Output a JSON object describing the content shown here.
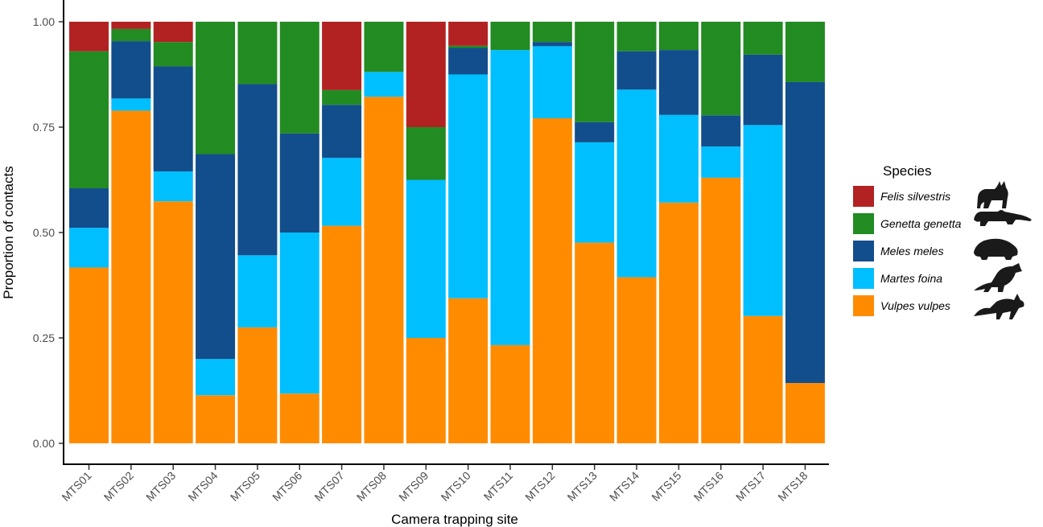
{
  "chart_data": {
    "type": "bar",
    "stacked": true,
    "xlabel": "Camera trapping site",
    "ylabel": "Proportion of contacts",
    "ylim": [
      0,
      1
    ],
    "yticks": [
      "0.00",
      "0.25",
      "0.50",
      "0.75",
      "1.00"
    ],
    "grid": false,
    "legend_title": "Species",
    "legend_position": "right",
    "categories": [
      "MTS01",
      "MTS02",
      "MTS03",
      "MTS04",
      "MTS05",
      "MTS06",
      "MTS07",
      "MTS08",
      "MTS09",
      "MTS10",
      "MTS11",
      "MTS12",
      "MTS13",
      "MTS14",
      "MTS15",
      "MTS16",
      "MTS17",
      "MTS18"
    ],
    "series": [
      {
        "name": "Vulpes vulpes",
        "color": "#FF8C00",
        "icon": "fox-silhouette-icon",
        "values": [
          0.417,
          0.789,
          0.574,
          0.114,
          0.275,
          0.118,
          0.516,
          0.822,
          0.25,
          0.344,
          0.233,
          0.771,
          0.476,
          0.394,
          0.571,
          0.63,
          0.302,
          0.143
        ]
      },
      {
        "name": "Martes foina",
        "color": "#00BFFF",
        "icon": "marten-silhouette-icon",
        "values": [
          0.094,
          0.029,
          0.071,
          0.086,
          0.171,
          0.382,
          0.161,
          0.059,
          0.375,
          0.531,
          0.7,
          0.171,
          0.238,
          0.445,
          0.208,
          0.074,
          0.453,
          0.0
        ]
      },
      {
        "name": "Meles meles",
        "color": "#124E8C",
        "icon": "badger-silhouette-icon",
        "values": [
          0.094,
          0.136,
          0.249,
          0.486,
          0.406,
          0.235,
          0.126,
          0.0,
          0.0,
          0.063,
          0.0,
          0.01,
          0.048,
          0.091,
          0.154,
          0.074,
          0.167,
          0.714
        ]
      },
      {
        "name": "Genetta genetta",
        "color": "#228B22",
        "icon": "genet-silhouette-icon",
        "values": [
          0.325,
          0.029,
          0.058,
          0.314,
          0.148,
          0.265,
          0.035,
          0.119,
          0.125,
          0.005,
          0.067,
          0.048,
          0.238,
          0.07,
          0.067,
          0.222,
          0.078,
          0.143
        ]
      },
      {
        "name": "Felis silvestris",
        "color": "#B22222",
        "icon": "wildcat-silhouette-icon",
        "values": [
          0.07,
          0.017,
          0.048,
          0.0,
          0.0,
          0.0,
          0.162,
          0.0,
          0.25,
          0.057,
          0.0,
          0.0,
          0.0,
          0.0,
          0.0,
          0.0,
          0.0,
          0.0
        ]
      }
    ]
  }
}
